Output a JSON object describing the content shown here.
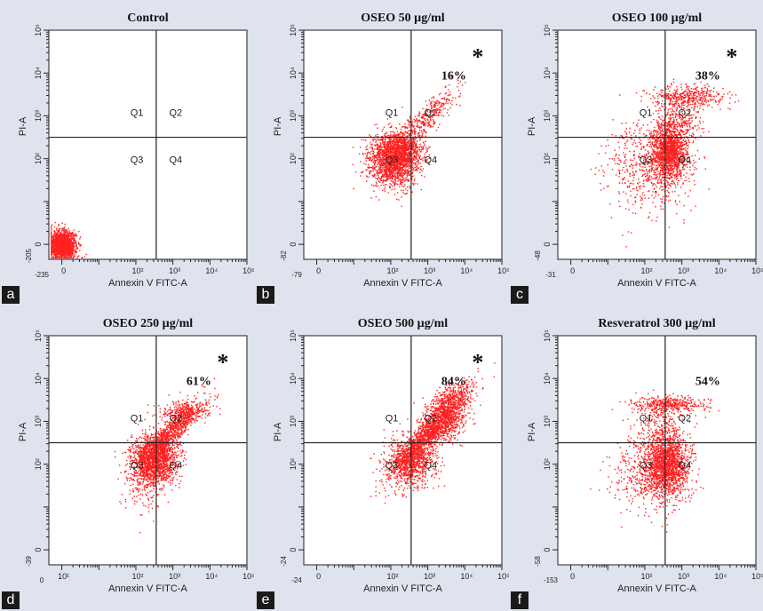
{
  "figure": {
    "background": "#dfe3ee",
    "dot_color": "#ff2020"
  },
  "chart_data": [
    {
      "panel_letter": "a",
      "type": "scatter",
      "title": "Control",
      "xlabel": "Annexin V FITC-A",
      "ylabel": "PI-A",
      "x_min_label": "-235",
      "y_min_label": "-205",
      "x_ticks": [
        "0",
        "10²",
        "10³",
        "10⁴",
        "10⁵"
      ],
      "y_ticks": [
        "0",
        "10²",
        "10³",
        "10⁴",
        "10⁵"
      ],
      "quadrants": [
        "Q1",
        "Q2",
        "Q3",
        "Q4"
      ],
      "annotation": "",
      "significant": false,
      "star": "*",
      "clusters": [
        {
          "x": 0,
          "y": 0,
          "sx": 0.18,
          "sy": 0.16,
          "n": 1700
        }
      ]
    },
    {
      "panel_letter": "b",
      "type": "scatter",
      "title": "OSEO 50 µg/ml",
      "xlabel": "Annexin V FITC-A",
      "ylabel": "PI-A",
      "x_min_label": "-79",
      "y_min_label": "-82",
      "x_ticks": [
        "0",
        "10²",
        "10³",
        "10⁴",
        "10⁵"
      ],
      "y_ticks": [
        "0",
        "10²",
        "10³",
        "10⁴",
        "10⁵"
      ],
      "quadrants": [
        "Q1",
        "Q2",
        "Q3",
        "Q4"
      ],
      "annotation": "16%",
      "significant": true,
      "star": "*",
      "clusters": [
        {
          "x": 2.05,
          "y": 2.0,
          "sx": 0.33,
          "sy": 0.3,
          "n": 1900
        },
        {
          "x": 2.4,
          "y": 2.25,
          "sx": 0.25,
          "sy": 0.2,
          "n": 350
        },
        {
          "x": 3.0,
          "y": 3.0,
          "sx": 0.38,
          "sy": 0.34,
          "n": 320,
          "corr": 0.85
        }
      ]
    },
    {
      "panel_letter": "c",
      "type": "scatter",
      "title": "OSEO 100  µg/ml",
      "xlabel": "Annexin V FITC-A",
      "ylabel": "PI-A",
      "x_min_label": "-31",
      "y_min_label": "-48",
      "x_ticks": [
        "0",
        "10²",
        "10³",
        "10⁴",
        "10⁵"
      ],
      "y_ticks": [
        "0",
        "10²",
        "10³",
        "10⁴",
        "10⁵"
      ],
      "quadrants": [
        "Q1",
        "Q2",
        "Q3",
        "Q4"
      ],
      "annotation": "38%",
      "significant": true,
      "star": "*",
      "clusters": [
        {
          "x": 2.65,
          "y": 2.2,
          "sx": 0.23,
          "sy": 0.34,
          "n": 1300
        },
        {
          "x": 2.15,
          "y": 1.8,
          "sx": 0.55,
          "sy": 0.55,
          "n": 650
        },
        {
          "x": 3.15,
          "y": 3.45,
          "sx": 0.5,
          "sy": 0.13,
          "n": 420
        },
        {
          "x": 2.95,
          "y": 2.85,
          "sx": 0.3,
          "sy": 0.3,
          "n": 260
        }
      ]
    },
    {
      "panel_letter": "d",
      "type": "scatter",
      "title": "OSEO 250  µg/ml",
      "xlabel": "Annexin V FITC-A",
      "ylabel": "PI-A",
      "x_min_label": "0",
      "y_min_label": "-39",
      "x_ticks": [
        "10¹",
        "10²",
        "10³",
        "10⁴",
        "10⁵"
      ],
      "y_ticks": [
        "0",
        "10²",
        "10³",
        "10⁴",
        "10⁵"
      ],
      "quadrants": [
        "Q1",
        "Q2",
        "Q3",
        "Q4"
      ],
      "annotation": "61%",
      "significant": true,
      "star": "*",
      "clusters": [
        {
          "x": 2.5,
          "y": 2.1,
          "sx": 0.3,
          "sy": 0.3,
          "n": 1500
        },
        {
          "x": 2.95,
          "y": 2.75,
          "sx": 0.42,
          "sy": 0.38,
          "n": 900,
          "corr": 0.9
        },
        {
          "x": 3.25,
          "y": 3.25,
          "sx": 0.35,
          "sy": 0.12,
          "n": 260
        },
        {
          "x": 2.2,
          "y": 1.75,
          "sx": 0.3,
          "sy": 0.4,
          "n": 250
        }
      ]
    },
    {
      "panel_letter": "e",
      "type": "scatter",
      "title": "OSEO 500 µg/ml",
      "xlabel": "Annexin V FITC-A",
      "ylabel": "PI-A",
      "x_min_label": "-24",
      "y_min_label": "-24",
      "x_ticks": [
        "0",
        "10²",
        "10³",
        "10⁴",
        "10⁵"
      ],
      "y_ticks": [
        "0",
        "10²",
        "10³",
        "10⁴",
        "10⁵"
      ],
      "quadrants": [
        "Q1",
        "Q2",
        "Q3",
        "Q4"
      ],
      "annotation": "84%",
      "significant": true,
      "star": "*",
      "clusters": [
        {
          "x": 2.55,
          "y": 2.1,
          "sx": 0.3,
          "sy": 0.28,
          "n": 800
        },
        {
          "x": 3.05,
          "y": 2.75,
          "sx": 0.45,
          "sy": 0.4,
          "n": 1200,
          "corr": 0.9
        },
        {
          "x": 3.5,
          "y": 3.4,
          "sx": 0.35,
          "sy": 0.28,
          "n": 650,
          "corr": 0.7
        },
        {
          "x": 3.55,
          "y": 2.95,
          "sx": 0.3,
          "sy": 0.25,
          "n": 300,
          "corr": 0.6
        },
        {
          "x": 2.2,
          "y": 1.9,
          "sx": 0.3,
          "sy": 0.35,
          "n": 150
        }
      ]
    },
    {
      "panel_letter": "f",
      "type": "scatter",
      "title": "Resveratrol 300 µg/ml",
      "xlabel": "Annexin V FITC-A",
      "ylabel": "PI-A",
      "x_min_label": "-153",
      "y_min_label": "-58",
      "x_ticks": [
        "0",
        "10²",
        "10³",
        "10⁴",
        "10⁵"
      ],
      "y_ticks": [
        "0",
        "10²",
        "10³",
        "10⁴",
        "10⁵"
      ],
      "quadrants": [
        "Q1",
        "Q2",
        "Q3",
        "Q4"
      ],
      "annotation": "54%",
      "significant": false,
      "star": "*",
      "clusters": [
        {
          "x": 2.6,
          "y": 2.0,
          "sx": 0.28,
          "sy": 0.35,
          "n": 1500
        },
        {
          "x": 2.1,
          "y": 1.8,
          "sx": 0.5,
          "sy": 0.45,
          "n": 500
        },
        {
          "x": 2.6,
          "y": 3.4,
          "sx": 0.5,
          "sy": 0.1,
          "n": 420
        },
        {
          "x": 2.45,
          "y": 2.8,
          "sx": 0.3,
          "sy": 0.35,
          "n": 280
        }
      ]
    }
  ]
}
